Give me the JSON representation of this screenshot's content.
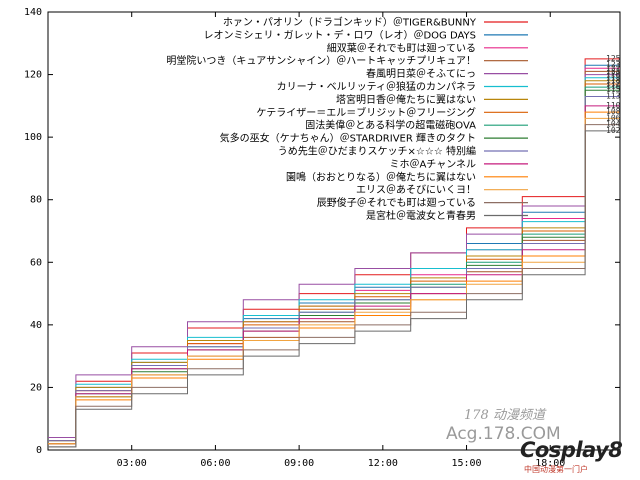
{
  "chart_data": {
    "type": "line",
    "xlim": [
      0,
      20.5
    ],
    "ylim": [
      0,
      140
    ],
    "x_ticks": [
      {
        "value": 3,
        "label": "03:00"
      },
      {
        "value": 6,
        "label": "06:00"
      },
      {
        "value": 9,
        "label": "09:00"
      },
      {
        "value": 12,
        "label": "12:00"
      },
      {
        "value": 15,
        "label": "15:00"
      },
      {
        "value": 18,
        "label": "18:00"
      }
    ],
    "y_ticks": [
      0,
      20,
      40,
      60,
      80,
      100,
      120,
      140
    ],
    "legend_position": "top-right",
    "series": [
      {
        "name": "ホァン・パオリン（ドラゴンキッド）＠TIGER&BUNNY",
        "color": "#e41a1c",
        "values": [
          4,
          22,
          31,
          39,
          45,
          50,
          56,
          63,
          71,
          81,
          125
        ]
      },
      {
        "name": "レオンミシェリ・ガレット・デ・ロワ（レオ）＠DOG DAYS",
        "color": "#1f78b4",
        "values": [
          3,
          20,
          28,
          35,
          42,
          47,
          52,
          58,
          66,
          76,
          123
        ]
      },
      {
        "name": "細双葉＠それでも町は廻っている",
        "color": "#e7298a",
        "values": [
          2,
          19,
          27,
          34,
          41,
          46,
          51,
          56,
          64,
          74,
          122
        ]
      },
      {
        "name": "明堂院いつき（キュアサンシャイン）＠ハートキャッチプリキュア！",
        "color": "#a65628",
        "values": [
          2,
          17,
          24,
          30,
          36,
          41,
          45,
          50,
          57,
          67,
          121
        ]
      },
      {
        "name": "春風明日菜＠そふてにっ",
        "color": "#984ea3",
        "values": [
          4,
          24,
          33,
          41,
          48,
          53,
          58,
          63,
          69,
          78,
          120
        ]
      },
      {
        "name": "カリーナ・ベルリッティ＠狼猛のカンパネラ",
        "color": "#17becf",
        "values": [
          3,
          21,
          29,
          36,
          43,
          48,
          53,
          58,
          64,
          73,
          119
        ]
      },
      {
        "name": "塔宮明日香＠俺たちに翼はない",
        "color": "#b8860b",
        "values": [
          3,
          20,
          28,
          35,
          41,
          46,
          50,
          55,
          62,
          71,
          118
        ]
      },
      {
        "name": "ケテライザー＝エル＝ブリジット＠フリージング",
        "color": "#d95f02",
        "values": [
          3,
          19,
          27,
          34,
          40,
          45,
          49,
          54,
          61,
          70,
          117
        ]
      },
      {
        "name": "固法美偉＠とある科学の超電磁砲OVA",
        "color": "#1b9e77",
        "values": [
          2,
          18,
          26,
          33,
          39,
          44,
          48,
          53,
          60,
          69,
          116
        ]
      },
      {
        "name": "気多の巫女（ケナちゃん）＠STARDRIVER 輝きのタクト",
        "color": "#2e7d32",
        "values": [
          2,
          17,
          25,
          32,
          38,
          43,
          47,
          52,
          59,
          68,
          115
        ]
      },
      {
        "name": "うめ先生＠ひだまりスケッチ×☆☆☆ 特別編",
        "color": "#7570b3",
        "values": [
          3,
          19,
          27,
          33,
          39,
          44,
          48,
          52,
          58,
          66,
          113
        ]
      },
      {
        "name": "ミホ＠Aチャンネル",
        "color": "#c51b7d",
        "values": [
          2,
          18,
          26,
          32,
          38,
          42,
          46,
          50,
          56,
          64,
          110
        ]
      },
      {
        "name": "園鳴（おおとりなる）＠俺たちに翼はない",
        "color": "#ff7f00",
        "values": [
          2,
          16,
          23,
          29,
          35,
          39,
          43,
          48,
          54,
          62,
          108
        ]
      },
      {
        "name": "エリス＠あそびにいくヨ！",
        "color": "#f1a340",
        "values": [
          2,
          17,
          24,
          30,
          35,
          40,
          44,
          48,
          53,
          60,
          106
        ]
      },
      {
        "name": "辰野俊子＠それでも町は廻っている",
        "color": "#8d6e63",
        "values": [
          1,
          14,
          20,
          26,
          32,
          36,
          40,
          44,
          50,
          58,
          104
        ]
      },
      {
        "name": "是宮杜＠電波女と青春男",
        "color": "#6b6b6b",
        "values": [
          1,
          13,
          18,
          24,
          30,
          34,
          38,
          42,
          48,
          56,
          102
        ]
      }
    ],
    "x": [
      0,
      2,
      4,
      6,
      8,
      10,
      12,
      14,
      16,
      18,
      20.5
    ],
    "end_labels": [
      "125",
      "123",
      "122",
      "121",
      "120",
      "119",
      "118",
      "117",
      "116",
      "115",
      "113",
      "110",
      "108",
      "106",
      "104",
      "102"
    ]
  },
  "watermark": {
    "line1": "178 动漫频道",
    "line2": "Acg.178.COM",
    "line3": "Cosplay8",
    "line4": "中国动漫第一门户"
  }
}
